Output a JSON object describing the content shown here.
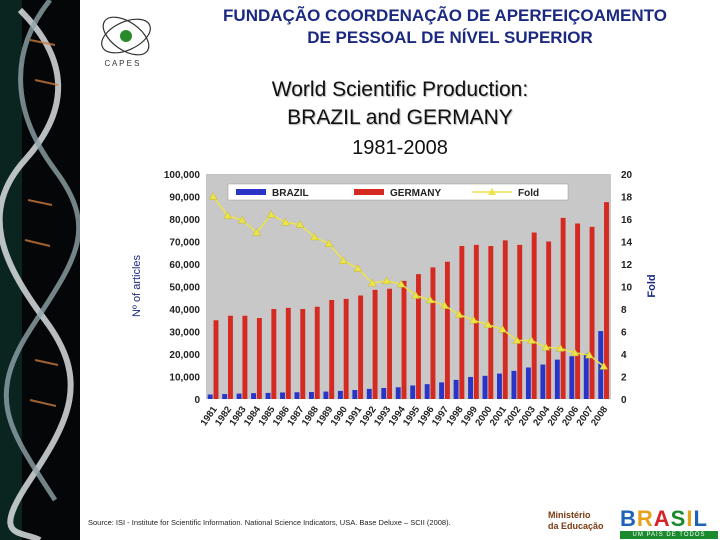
{
  "header": {
    "org_line1": "FUNDAÇÃO COORDENAÇÃO DE APERFEIÇOAMENTO",
    "org_line2": "DE PESSOAL DE NÍVEL SUPERIOR",
    "logo_text": "C A P E S"
  },
  "title": {
    "line1": "World Scientific Production:",
    "line2": "BRAZIL and GERMANY",
    "line3": "1981-2008"
  },
  "chart_data": {
    "type": "bar",
    "categories": [
      "1981",
      "1982",
      "1983",
      "1984",
      "1985",
      "1986",
      "1987",
      "1988",
      "1989",
      "1990",
      "1991",
      "1992",
      "1993",
      "1994",
      "1995",
      "1996",
      "1997",
      "1998",
      "1999",
      "2000",
      "2001",
      "2002",
      "2003",
      "2004",
      "2005",
      "2006",
      "2007",
      "2008"
    ],
    "series": [
      {
        "name": "BRAZIL",
        "kind": "bar",
        "axis": "left",
        "color": "#2a35c8",
        "values": [
          2000,
          2200,
          2400,
          2600,
          2700,
          2900,
          3000,
          3100,
          3300,
          3600,
          4000,
          4500,
          4900,
          5200,
          6000,
          6600,
          7400,
          8500,
          9800,
          10300,
          11300,
          12500,
          14000,
          15300,
          17500,
          19000,
          20200,
          30200
        ]
      },
      {
        "name": "GERMANY",
        "kind": "bar",
        "axis": "left",
        "color": "#d42a22",
        "values": [
          35000,
          37000,
          37000,
          36000,
          40000,
          40500,
          40000,
          41000,
          44000,
          44500,
          46000,
          48500,
          49000,
          52500,
          55500,
          58500,
          61000,
          68000,
          68500,
          68000,
          70500,
          68500,
          74000,
          70000,
          80500,
          78000,
          76500,
          87500
        ]
      },
      {
        "name": "Fold",
        "kind": "line",
        "axis": "right",
        "color": "#ece24a",
        "values": [
          18,
          16.3,
          15.9,
          14.8,
          16.4,
          15.7,
          15.5,
          14.4,
          13.8,
          12.3,
          11.6,
          10.3,
          10.5,
          10.2,
          9.2,
          8.8,
          8.3,
          7.5,
          7.0,
          6.6,
          6.2,
          5.2,
          5.2,
          4.6,
          4.5,
          4.1,
          3.9,
          2.9
        ]
      }
    ],
    "ylabel": "Nº of articles",
    "y2label": "Fold",
    "ylim": [
      0,
      100000
    ],
    "y2lim": [
      0,
      20
    ],
    "yticks": [
      "0",
      "10,000",
      "20,000",
      "30,000",
      "40,000",
      "50,000",
      "60,000",
      "70,000",
      "80,000",
      "90,000",
      "100,000"
    ],
    "y2ticks": [
      "0",
      "2",
      "4",
      "6",
      "8",
      "10",
      "12",
      "14",
      "16",
      "18",
      "20"
    ],
    "legend_position": "top",
    "plot_background": "#c8c8c8",
    "grid": false
  },
  "footer": {
    "source": "Source: ISI - Institute for Scientific Information. National Science Indicators, USA. Base Deluxe – SCII (2008).",
    "ministry_line1": "Ministério",
    "ministry_line2": "da Educação",
    "brasil_word": "BRASIL",
    "brasil_sub": "UM PAÍS DE TODOS"
  },
  "colors": {
    "header_text": "#1b2a80",
    "brazil": "#2a35c8",
    "germany": "#d42a22",
    "fold": "#ece24a"
  }
}
